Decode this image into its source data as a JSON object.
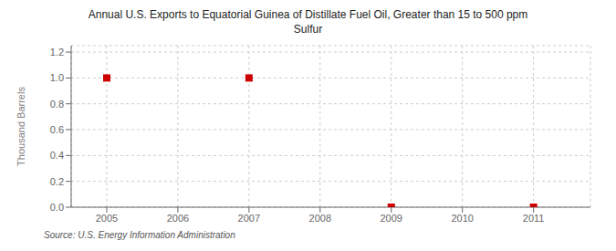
{
  "chart_data": {
    "type": "scatter",
    "title": "Annual U.S. Exports to Equatorial Guinea of Distillate Fuel Oil, Greater than 15 to 500 ppm\nSulfur",
    "ylabel": "Thousand Barrels",
    "annotations": [
      "Source: U.S. Energy Information Administration"
    ],
    "x": [
      2005,
      2007,
      2009,
      2011
    ],
    "values": [
      1.0,
      1.0,
      0.0,
      0.0
    ],
    "color": "#cc0000",
    "marker": "square",
    "xlim": [
      2004.5,
      2011.8
    ],
    "ylim": [
      0.0,
      1.25
    ],
    "xticks": [
      2005,
      2006,
      2007,
      2008,
      2009,
      2010,
      2011
    ],
    "yticks": [
      {
        "value": 0,
        "label": "0.0"
      },
      0.2,
      0.4,
      0.6,
      0.8,
      {
        "value": 1,
        "label": "1.0"
      },
      1.2
    ],
    "grid": true
  }
}
